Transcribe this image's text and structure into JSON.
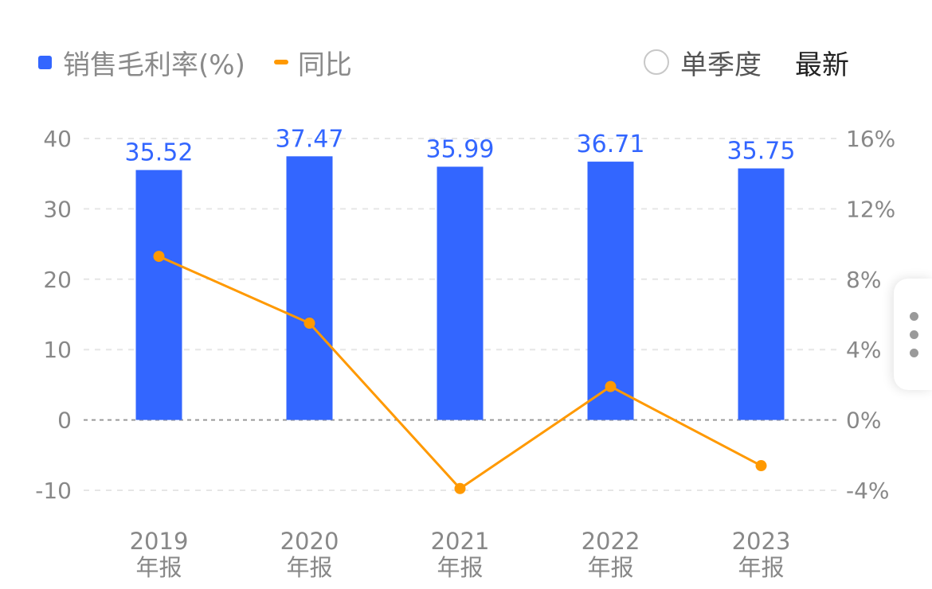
{
  "legend": {
    "bar_label": "销售毛利率(%)",
    "line_label": "同比"
  },
  "controls": {
    "quarter_label": "单季度",
    "latest_label": "最新"
  },
  "colors": {
    "bar": "#3366ff",
    "line": "#ff9900",
    "tick_text": "#888888",
    "grid": "#e6e6e6",
    "zero_line": "#9a9a9a"
  },
  "icons": {
    "menu": "more-vertical-icon"
  },
  "chart_data": {
    "type": "bar",
    "categories": [
      [
        "2019",
        "年报"
      ],
      [
        "2020",
        "年报"
      ],
      [
        "2021",
        "年报"
      ],
      [
        "2022",
        "年报"
      ],
      [
        "2023",
        "年报"
      ]
    ],
    "series": [
      {
        "name": "销售毛利率(%)",
        "type": "bar",
        "axis": "left",
        "values": [
          35.52,
          37.47,
          35.99,
          36.71,
          35.75
        ],
        "labels": [
          "35.52",
          "37.47",
          "35.99",
          "36.71",
          "35.75"
        ]
      },
      {
        "name": "同比",
        "type": "line",
        "axis": "right",
        "values": [
          9.3,
          5.5,
          -3.9,
          1.9,
          -2.6
        ]
      }
    ],
    "y_left": {
      "ticks": [
        40,
        30,
        20,
        10,
        0,
        -10
      ],
      "labels": [
        "40",
        "30",
        "20",
        "10",
        "0",
        "-10"
      ],
      "lim": [
        -10,
        40
      ]
    },
    "y_right": {
      "ticks": [
        16,
        12,
        8,
        4,
        0,
        -4
      ],
      "labels": [
        "16%",
        "12%",
        "8%",
        "4%",
        "0%",
        "-4%"
      ],
      "lim": [
        -4,
        16
      ]
    },
    "grid": true
  }
}
